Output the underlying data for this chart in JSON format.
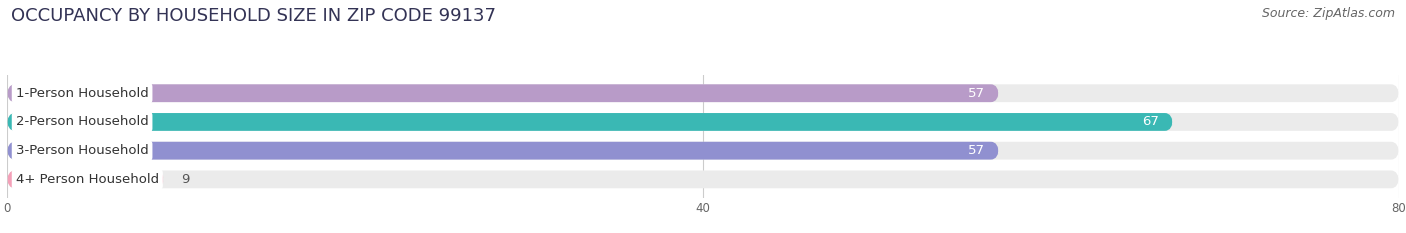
{
  "title": "OCCUPANCY BY HOUSEHOLD SIZE IN ZIP CODE 99137",
  "source": "Source: ZipAtlas.com",
  "categories": [
    "1-Person Household",
    "2-Person Household",
    "3-Person Household",
    "4+ Person Household"
  ],
  "values": [
    57,
    67,
    57,
    9
  ],
  "bar_colors": [
    "#b89bc8",
    "#3ab8b4",
    "#9090d0",
    "#f4a0b8"
  ],
  "bar_label_colors": [
    "white",
    "white",
    "white",
    "#555555"
  ],
  "xlim": [
    0,
    80
  ],
  "xticks": [
    0,
    40,
    80
  ],
  "background_color": "#ffffff",
  "bar_bg_color": "#ebebeb",
  "title_fontsize": 13,
  "source_fontsize": 9,
  "label_fontsize": 9.5,
  "value_fontsize": 9.5,
  "bar_height": 0.62,
  "figsize": [
    14.06,
    2.33
  ],
  "dpi": 100
}
